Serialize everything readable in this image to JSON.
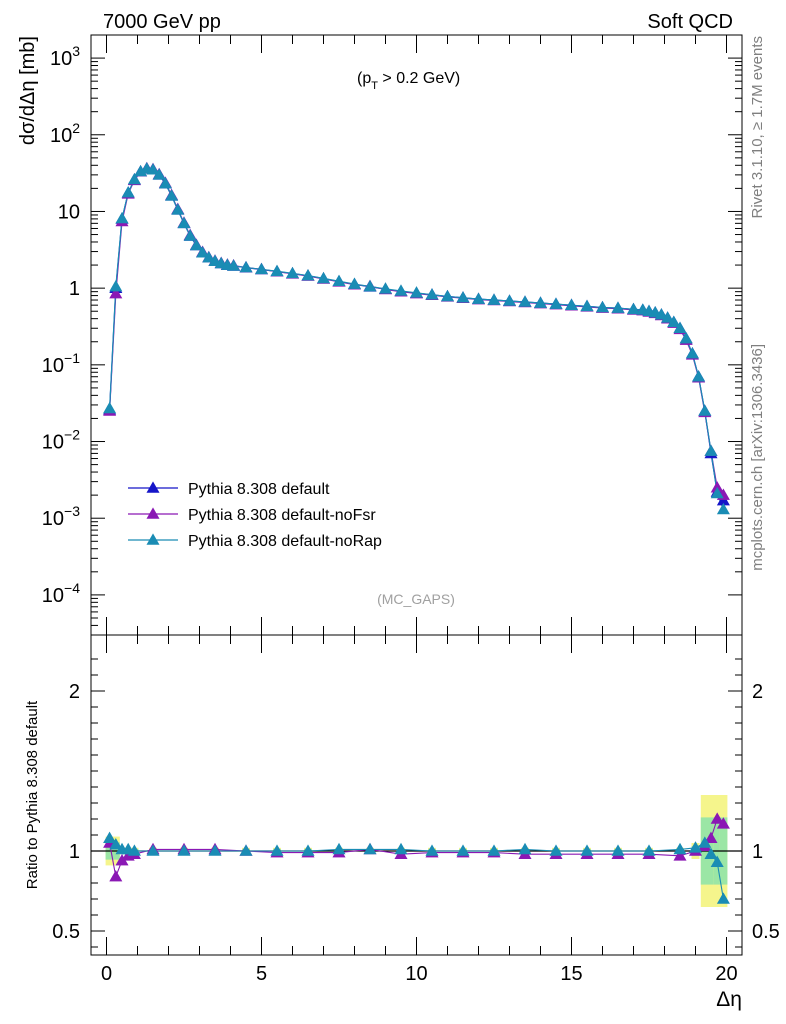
{
  "header": {
    "left": "7000 GeV pp",
    "right": "Soft QCD"
  },
  "annotations": {
    "cut_prefix": "(p",
    "cut_sub": "T",
    "cut_suffix": " > 0.2 GeV)",
    "analysis": "(MC_GAPS)"
  },
  "side_text": {
    "rivet": "Rivet 3.1.10, ≥ 1.7M events",
    "source": "mcplots.cern.ch [arXiv:1306.3436]"
  },
  "colors": {
    "default": "#1515c8",
    "noFsr": "#8a18b4",
    "noRap": "#1a8cb4",
    "band_yellow": "#f5f58c",
    "band_green": "#9be6a5"
  },
  "chart_data": [
    {
      "type": "line",
      "ylabel": "dσ/dΔη [mb]",
      "yscale": "log",
      "ylim": [
        3e-05,
        2000
      ],
      "xlim": [
        -0.5,
        20.5
      ],
      "y_ticks": [
        {
          "v": 1000,
          "base": "10",
          "exp": "3"
        },
        {
          "v": 100,
          "base": "10",
          "exp": "2"
        },
        {
          "v": 10,
          "base": "10",
          "exp": ""
        },
        {
          "v": 1,
          "base": "1",
          "exp": ""
        },
        {
          "v": 0.1,
          "base": "10",
          "exp": "−1"
        },
        {
          "v": 0.01,
          "base": "10",
          "exp": "−2"
        },
        {
          "v": 0.001,
          "base": "10",
          "exp": "−3"
        },
        {
          "v": 0.0001,
          "base": "10",
          "exp": "−4"
        }
      ],
      "legend_position": "lower-left",
      "series": [
        {
          "name": "Pythia 8.308 default",
          "x": [
            0.1,
            0.3,
            0.5,
            0.7,
            0.9,
            1.1,
            1.3,
            1.5,
            1.7,
            1.9,
            2.1,
            2.3,
            2.5,
            2.7,
            2.9,
            3.1,
            3.3,
            3.5,
            3.7,
            3.9,
            4.1,
            4.5,
            5.0,
            5.5,
            6.0,
            6.5,
            7.0,
            7.5,
            8.0,
            8.5,
            9.0,
            9.5,
            10.0,
            10.5,
            11.0,
            11.5,
            12.0,
            12.5,
            13.0,
            13.5,
            14.0,
            14.5,
            15.0,
            15.5,
            16.0,
            16.5,
            17.0,
            17.3,
            17.5,
            17.7,
            17.9,
            18.1,
            18.3,
            18.5,
            18.7,
            18.9,
            19.1,
            19.3,
            19.5,
            19.7,
            19.9
          ],
          "y": [
            0.026,
            1.0,
            8.0,
            17.5,
            26.0,
            33.0,
            36.0,
            35.0,
            30.0,
            23.0,
            16.0,
            10.5,
            7.0,
            4.8,
            3.6,
            2.9,
            2.5,
            2.25,
            2.1,
            2.0,
            1.95,
            1.85,
            1.75,
            1.65,
            1.55,
            1.45,
            1.33,
            1.22,
            1.12,
            1.04,
            0.97,
            0.91,
            0.86,
            0.82,
            0.78,
            0.75,
            0.72,
            0.7,
            0.68,
            0.66,
            0.64,
            0.62,
            0.6,
            0.58,
            0.56,
            0.55,
            0.53,
            0.52,
            0.5,
            0.48,
            0.45,
            0.41,
            0.36,
            0.3,
            0.22,
            0.14,
            0.07,
            0.025,
            0.007,
            0.0022,
            0.0017
          ]
        },
        {
          "name": "Pythia 8.308 default-noFsr",
          "x": [
            0.1,
            0.3,
            0.5,
            0.7,
            0.9,
            1.1,
            1.3,
            1.5,
            1.7,
            1.9,
            2.1,
            2.3,
            2.5,
            2.7,
            2.9,
            3.1,
            3.3,
            3.5,
            3.7,
            3.9,
            4.1,
            4.5,
            5.0,
            5.5,
            6.0,
            6.5,
            7.0,
            7.5,
            8.0,
            8.5,
            9.0,
            9.5,
            10.0,
            10.5,
            11.0,
            11.5,
            12.0,
            12.5,
            13.0,
            13.5,
            14.0,
            14.5,
            15.0,
            15.5,
            16.0,
            16.5,
            17.0,
            17.3,
            17.5,
            17.7,
            17.9,
            18.1,
            18.3,
            18.5,
            18.7,
            18.9,
            19.1,
            19.3,
            19.5,
            19.7,
            19.9
          ],
          "y": [
            0.025,
            0.85,
            7.4,
            17.0,
            25.5,
            33.0,
            36.5,
            35.5,
            30.5,
            23.5,
            16.3,
            10.7,
            7.1,
            4.9,
            3.65,
            2.95,
            2.52,
            2.27,
            2.12,
            2.02,
            1.97,
            1.86,
            1.76,
            1.64,
            1.54,
            1.44,
            1.32,
            1.21,
            1.11,
            1.06,
            0.96,
            0.9,
            0.85,
            0.81,
            0.77,
            0.74,
            0.71,
            0.69,
            0.67,
            0.65,
            0.63,
            0.61,
            0.59,
            0.57,
            0.55,
            0.54,
            0.52,
            0.51,
            0.49,
            0.47,
            0.44,
            0.4,
            0.35,
            0.29,
            0.21,
            0.135,
            0.068,
            0.024,
            0.0075,
            0.0025,
            0.002
          ]
        },
        {
          "name": "Pythia 8.308 default-noRap",
          "x": [
            0.1,
            0.3,
            0.5,
            0.7,
            0.9,
            1.1,
            1.3,
            1.5,
            1.7,
            1.9,
            2.1,
            2.3,
            2.5,
            2.7,
            2.9,
            3.1,
            3.3,
            3.5,
            3.7,
            3.9,
            4.1,
            4.5,
            5.0,
            5.5,
            6.0,
            6.5,
            7.0,
            7.5,
            8.0,
            8.5,
            9.0,
            9.5,
            10.0,
            10.5,
            11.0,
            11.5,
            12.0,
            12.5,
            13.0,
            13.5,
            14.0,
            14.5,
            15.0,
            15.5,
            16.0,
            16.5,
            17.0,
            17.3,
            17.5,
            17.7,
            17.9,
            18.1,
            18.3,
            18.5,
            18.7,
            18.9,
            19.1,
            19.3,
            19.5,
            19.7,
            19.9
          ],
          "y": [
            0.027,
            1.05,
            8.1,
            17.6,
            26.1,
            33.2,
            36.1,
            35.0,
            30.0,
            23.1,
            16.0,
            10.5,
            7.0,
            4.8,
            3.6,
            2.9,
            2.5,
            2.25,
            2.1,
            2.0,
            1.95,
            1.86,
            1.76,
            1.66,
            1.56,
            1.46,
            1.34,
            1.23,
            1.13,
            1.05,
            0.98,
            0.92,
            0.87,
            0.82,
            0.78,
            0.75,
            0.72,
            0.7,
            0.68,
            0.66,
            0.64,
            0.62,
            0.6,
            0.58,
            0.56,
            0.55,
            0.53,
            0.52,
            0.5,
            0.48,
            0.45,
            0.41,
            0.36,
            0.3,
            0.22,
            0.14,
            0.07,
            0.025,
            0.0075,
            0.0021,
            0.0013
          ]
        }
      ]
    },
    {
      "type": "line",
      "xlabel": "Δη",
      "ylabel": "Ratio to Pythia 8.308 default",
      "xlim": [
        -0.5,
        20.5
      ],
      "ylim": [
        0.35,
        2.35
      ],
      "x_ticks": [
        0,
        5,
        10,
        15,
        20
      ],
      "y_ticks": [
        0.5,
        1,
        2
      ],
      "y_tick_labels": [
        "0.5",
        "1",
        "2"
      ],
      "reference_line": 1,
      "series": [
        {
          "name": "Pythia 8.308 default-noFsr",
          "x": [
            0.1,
            0.3,
            0.5,
            0.7,
            0.9,
            1.5,
            2.5,
            3.5,
            4.5,
            5.5,
            6.5,
            7.5,
            8.5,
            9.5,
            10.5,
            11.5,
            12.5,
            13.5,
            14.5,
            15.5,
            16.5,
            17.5,
            18.5,
            19.0,
            19.3,
            19.5,
            19.7,
            19.9
          ],
          "y": [
            1.05,
            0.84,
            0.94,
            0.97,
            0.98,
            1.01,
            1.01,
            1.01,
            1.0,
            0.99,
            0.99,
            0.99,
            1.01,
            0.98,
            0.99,
            0.99,
            0.99,
            0.98,
            0.98,
            0.98,
            0.98,
            0.98,
            0.97,
            1.0,
            1.03,
            1.08,
            1.2,
            1.17
          ]
        },
        {
          "name": "Pythia 8.308 default-noRap",
          "x": [
            0.1,
            0.3,
            0.5,
            0.7,
            0.9,
            1.5,
            2.5,
            3.5,
            4.5,
            5.5,
            6.5,
            7.5,
            8.5,
            9.5,
            10.5,
            11.5,
            12.5,
            13.5,
            14.5,
            15.5,
            16.5,
            17.5,
            18.5,
            19.0,
            19.3,
            19.5,
            19.7,
            19.9
          ],
          "y": [
            1.08,
            1.04,
            1.01,
            1.01,
            1.0,
            1.0,
            1.0,
            1.0,
            1.0,
            1.0,
            1.0,
            1.01,
            1.01,
            1.01,
            1.0,
            1.0,
            1.0,
            1.01,
            1.0,
            1.0,
            1.0,
            1.0,
            1.01,
            1.02,
            1.05,
            0.98,
            0.93,
            0.7
          ]
        }
      ]
    }
  ]
}
